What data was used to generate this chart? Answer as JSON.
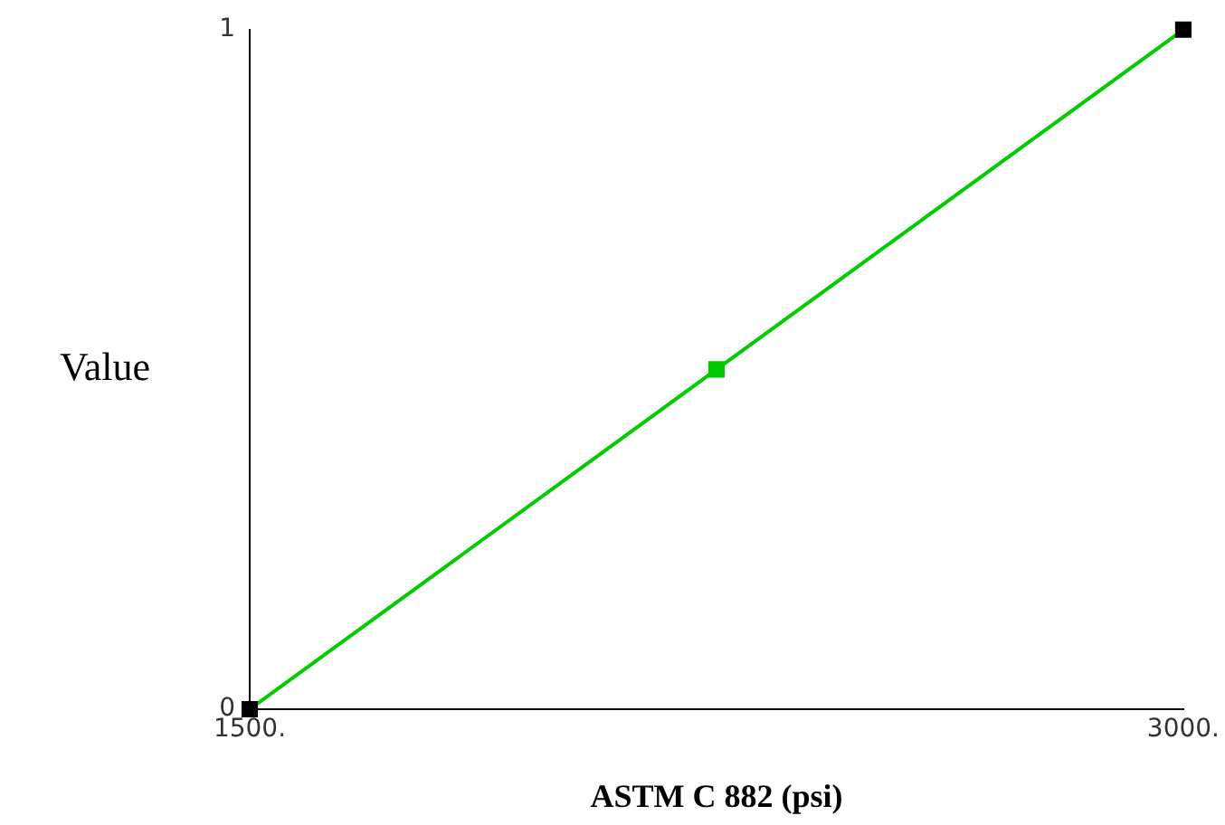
{
  "chart_data": {
    "type": "line",
    "xlabel": "ASTM C 882 (psi)",
    "ylabel": "Value",
    "x": [
      1500,
      2250,
      3000
    ],
    "series": [
      {
        "color": "#00cc00",
        "colors": [
          "#000000",
          "#00cc00",
          "#000000"
        ],
        "values": [
          0,
          0.5,
          1
        ]
      }
    ],
    "xlim": [
      1500,
      3000
    ],
    "xticks": [
      {
        "value": 1500,
        "label": "1500."
      },
      {
        "value": 3000,
        "label": "3000."
      }
    ],
    "ylim": [
      0,
      1
    ],
    "yticks": [
      0,
      1
    ],
    "grid": false,
    "legend": false,
    "marker": "square",
    "line_style": "solid"
  }
}
